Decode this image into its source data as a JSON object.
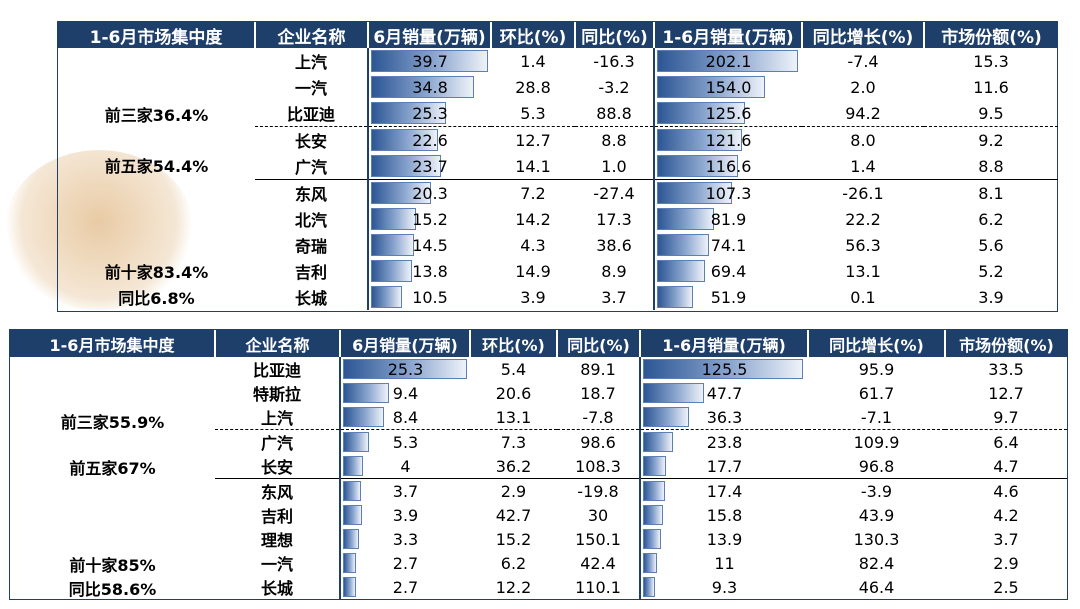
{
  "colors": {
    "header_bg": "#1f3f6b",
    "bar": "#2c5694"
  },
  "headers": [
    "1-6月市场集中度",
    "企业名称",
    "6月销量(万辆)",
    "环比(%)",
    "同比(%)",
    "1-6月销量(万辆)",
    "同比增长(%)",
    "市场份额(%)"
  ],
  "table1": {
    "groups": [
      "前三家36.4%",
      "前五家54.4%",
      "前十家83.4%",
      "同比6.8%"
    ],
    "bar_max": 39.7,
    "ytd_max": 202.1,
    "rows": [
      {
        "name": "上汽",
        "m6": 39.7,
        "mom": "1.4",
        "yoy": "-16.3",
        "ytd": 202.1,
        "ytd_yoy": "-7.4",
        "share": "15.3"
      },
      {
        "name": "一汽",
        "m6": 34.8,
        "mom": "28.8",
        "yoy": "-3.2",
        "ytd": 154.0,
        "ytd_yoy": "2.0",
        "share": "11.6"
      },
      {
        "name": "比亚迪",
        "m6": 25.3,
        "mom": "5.3",
        "yoy": "88.8",
        "ytd": 125.6,
        "ytd_yoy": "94.2",
        "share": "9.5"
      },
      {
        "name": "长安",
        "m6": 22.6,
        "mom": "12.7",
        "yoy": "8.8",
        "ytd": 121.6,
        "ytd_yoy": "8.0",
        "share": "9.2"
      },
      {
        "name": "广汽",
        "m6": 23.7,
        "mom": "14.1",
        "yoy": "1.0",
        "ytd": 116.6,
        "ytd_yoy": "1.4",
        "share": "8.8"
      },
      {
        "name": "东风",
        "m6": 20.3,
        "mom": "7.2",
        "yoy": "-27.4",
        "ytd": 107.3,
        "ytd_yoy": "-26.1",
        "share": "8.1"
      },
      {
        "name": "北汽",
        "m6": 15.2,
        "mom": "14.2",
        "yoy": "17.3",
        "ytd": 81.9,
        "ytd_yoy": "22.2",
        "share": "6.2"
      },
      {
        "name": "奇瑞",
        "m6": 14.5,
        "mom": "4.3",
        "yoy": "38.6",
        "ytd": 74.1,
        "ytd_yoy": "56.3",
        "share": "5.6"
      },
      {
        "name": "吉利",
        "m6": 13.8,
        "mom": "14.9",
        "yoy": "8.9",
        "ytd": 69.4,
        "ytd_yoy": "13.1",
        "share": "5.2"
      },
      {
        "name": "长城",
        "m6": 10.5,
        "mom": "3.9",
        "yoy": "3.7",
        "ytd": 51.9,
        "ytd_yoy": "0.1",
        "share": "3.9"
      }
    ],
    "display_m6": [
      "39.7",
      "34.8",
      "25.3",
      "22.6",
      "23.7",
      "20.3",
      "15.2",
      "14.5",
      "13.8",
      "10.5"
    ],
    "display_ytd": [
      "202.1",
      "154.0",
      "125.6",
      "121.6",
      "116.6",
      "107.3",
      "81.9",
      "74.1",
      "69.4",
      "51.9"
    ]
  },
  "table2": {
    "groups": [
      "前三家55.9%",
      "前五家67%",
      "前十家85%",
      "同比58.6%"
    ],
    "bar_max": 25.3,
    "ytd_max": 125.5,
    "rows": [
      {
        "name": "比亚迪",
        "m6": 25.3,
        "mom": "5.4",
        "yoy": "89.1",
        "ytd": 125.5,
        "ytd_yoy": "95.9",
        "share": "33.5"
      },
      {
        "name": "特斯拉",
        "m6": 9.4,
        "mom": "20.6",
        "yoy": "18.7",
        "ytd": 47.7,
        "ytd_yoy": "61.7",
        "share": "12.7"
      },
      {
        "name": "上汽",
        "m6": 8.4,
        "mom": "13.1",
        "yoy": "-7.8",
        "ytd": 36.3,
        "ytd_yoy": "-7.1",
        "share": "9.7"
      },
      {
        "name": "广汽",
        "m6": 5.3,
        "mom": "7.3",
        "yoy": "98.6",
        "ytd": 23.8,
        "ytd_yoy": "109.9",
        "share": "6.4"
      },
      {
        "name": "长安",
        "m6": 4,
        "mom": "36.2",
        "yoy": "108.3",
        "ytd": 17.7,
        "ytd_yoy": "96.8",
        "share": "4.7"
      },
      {
        "name": "东风",
        "m6": 3.7,
        "mom": "2.9",
        "yoy": "-19.8",
        "ytd": 17.4,
        "ytd_yoy": "-3.9",
        "share": "4.6"
      },
      {
        "name": "吉利",
        "m6": 3.9,
        "mom": "42.7",
        "yoy": "30",
        "ytd": 15.8,
        "ytd_yoy": "43.9",
        "share": "4.2"
      },
      {
        "name": "理想",
        "m6": 3.3,
        "mom": "15.2",
        "yoy": "150.1",
        "ytd": 13.9,
        "ytd_yoy": "130.3",
        "share": "3.7"
      },
      {
        "name": "一汽",
        "m6": 2.7,
        "mom": "6.2",
        "yoy": "42.4",
        "ytd": 11,
        "ytd_yoy": "82.4",
        "share": "2.9"
      },
      {
        "name": "长城",
        "m6": 2.7,
        "mom": "12.2",
        "yoy": "110.1",
        "ytd": 9.3,
        "ytd_yoy": "46.4",
        "share": "2.5"
      }
    ],
    "display_m6": [
      "25.3",
      "9.4",
      "8.4",
      "5.3",
      "4",
      "3.7",
      "3.9",
      "3.3",
      "2.7",
      "2.7"
    ],
    "display_ytd": [
      "125.5",
      "47.7",
      "36.3",
      "23.8",
      "17.7",
      "17.4",
      "15.8",
      "13.9",
      "11",
      "9.3"
    ]
  }
}
